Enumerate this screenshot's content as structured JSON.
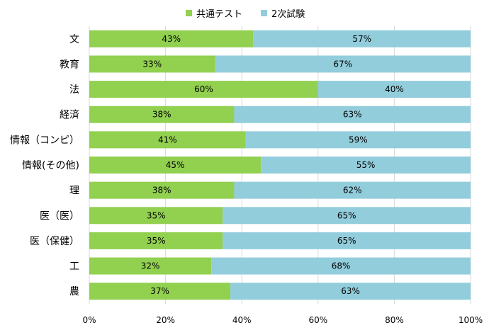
{
  "chart_data": {
    "type": "bar",
    "orientation": "horizontal",
    "stacked": true,
    "percent_stacked": true,
    "categories": [
      "文",
      "教育",
      "法",
      "経済",
      "情報（コンピ）",
      "情報(その他)",
      "理",
      "医（医）",
      "医（保健）",
      "工",
      "農"
    ],
    "series": [
      {
        "name": "共通テスト",
        "color": "#92d050",
        "values": [
          43,
          33,
          60,
          38,
          41,
          45,
          38,
          35,
          35,
          32,
          37
        ],
        "labels": [
          "43%",
          "33%",
          "60%",
          "38%",
          "41%",
          "45%",
          "38%",
          "35%",
          "35%",
          "32%",
          "37%"
        ]
      },
      {
        "name": "2次試験",
        "color": "#92cddc",
        "values": [
          57,
          67,
          40,
          63,
          59,
          55,
          62,
          65,
          65,
          68,
          63
        ],
        "labels": [
          "57%",
          "67%",
          "40%",
          "63%",
          "59%",
          "55%",
          "62%",
          "65%",
          "65%",
          "68%",
          "63%"
        ]
      }
    ],
    "xlim": [
      0,
      100
    ],
    "x_ticks": [
      "0%",
      "20%",
      "40%",
      "60%",
      "80%",
      "100%"
    ],
    "grid": "vertical",
    "legend_position": "top"
  }
}
